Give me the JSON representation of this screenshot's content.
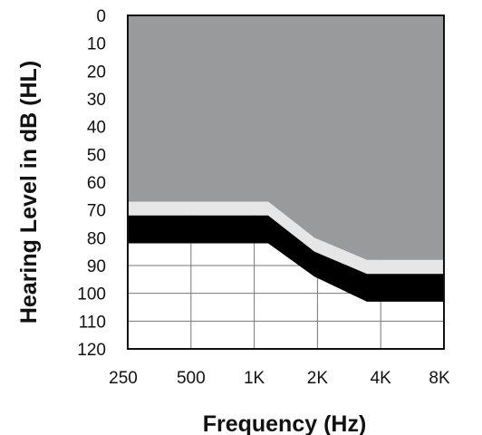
{
  "chart_data": {
    "type": "area",
    "xlabel": "Frequency (Hz)",
    "ylabel": "Hearing Level in dB (HL)",
    "x_ticks": [
      "250",
      "500",
      "1K",
      "2K",
      "4K",
      "8K"
    ],
    "y_ticks": [
      "0",
      "10",
      "20",
      "30",
      "40",
      "50",
      "60",
      "70",
      "80",
      "90",
      "100",
      "110",
      "120"
    ],
    "ylim": [
      0,
      120
    ],
    "y_inverted": true,
    "grid": true,
    "bands": [
      {
        "role": "dark-gray-region",
        "color": "#999a9c",
        "top": [
          0,
          0,
          0,
          0,
          0,
          0
        ],
        "bottom": [
          67,
          67,
          67,
          80,
          88,
          88
        ]
      },
      {
        "role": "light-band",
        "color": "#e6e6e6",
        "top": [
          67,
          67,
          67,
          80,
          88,
          88
        ],
        "bottom": [
          72,
          72,
          72,
          85,
          93,
          93
        ]
      },
      {
        "role": "black-band",
        "color": "#000000",
        "top": [
          72,
          72,
          72,
          85,
          93,
          93
        ],
        "bottom": [
          82,
          82,
          82,
          94,
          103,
          103
        ]
      }
    ],
    "band_breakpoints_x": [
      "250",
      "1K-mid",
      "1K+",
      "2K-mid",
      "4K-",
      "8K"
    ]
  }
}
